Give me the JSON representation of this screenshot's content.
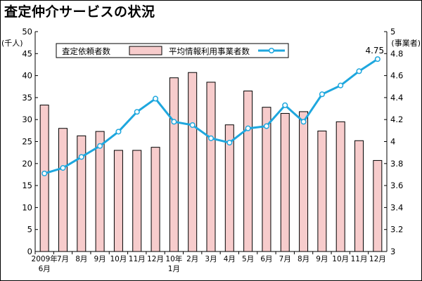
{
  "chart_data": {
    "type": "bar+line",
    "title": "査定仲介サービスの状況",
    "y_left": {
      "label_line1": "(千人)",
      "min": 0,
      "max": 50,
      "step": 5
    },
    "y_right": {
      "label_line1": "(事業者)",
      "min": 3,
      "max": 5,
      "step": 0.2,
      "tick_labels": [
        "3",
        "3.2",
        "3.4",
        "3.6",
        "3.8",
        "4",
        "4.2",
        "4.4",
        "4.6",
        "4.8",
        "5"
      ]
    },
    "categories": [
      {
        "line1": "2009年",
        "line2": "6月"
      },
      {
        "line1": "7月",
        "line2": ""
      },
      {
        "line1": "8月",
        "line2": ""
      },
      {
        "line1": "9月",
        "line2": ""
      },
      {
        "line1": "10月",
        "line2": ""
      },
      {
        "line1": "11月",
        "line2": ""
      },
      {
        "line1": "12月",
        "line2": ""
      },
      {
        "line1": "10年",
        "line2": "1月"
      },
      {
        "line1": "2月",
        "line2": ""
      },
      {
        "line1": "3月",
        "line2": ""
      },
      {
        "line1": "4月",
        "line2": ""
      },
      {
        "line1": "5月",
        "line2": ""
      },
      {
        "line1": "6月",
        "line2": ""
      },
      {
        "line1": "7月",
        "line2": ""
      },
      {
        "line1": "8月",
        "line2": ""
      },
      {
        "line1": "9月",
        "line2": ""
      },
      {
        "line1": "10月",
        "line2": ""
      },
      {
        "line1": "11月",
        "line2": ""
      },
      {
        "line1": "12月",
        "line2": ""
      }
    ],
    "series": [
      {
        "name": "査定依頼者数",
        "type": "bar",
        "axis": "left",
        "values": [
          33.3,
          28.0,
          26.3,
          27.3,
          23.0,
          23.0,
          23.7,
          39.5,
          40.7,
          38.5,
          28.8,
          36.5,
          32.8,
          31.4,
          31.8,
          27.4,
          29.5,
          25.2,
          20.7
        ]
      },
      {
        "name": "平均情報利用事業者数",
        "type": "line",
        "axis": "right",
        "values": [
          3.71,
          3.76,
          3.86,
          3.96,
          4.09,
          4.27,
          4.39,
          4.18,
          4.15,
          4.03,
          3.99,
          4.12,
          4.14,
          4.33,
          4.18,
          4.43,
          4.51,
          4.64,
          4.75
        ]
      }
    ],
    "annotations": [
      {
        "text": "4.75",
        "point_index": 18,
        "series_index": 1
      }
    ],
    "legend_position": "top",
    "grid": false
  },
  "colors": {
    "bar_fill": "#f7cccc",
    "bar_stroke": "#000000",
    "line": "#1ea7de",
    "marker_fill": "#ffffff",
    "axis": "#000000"
  }
}
